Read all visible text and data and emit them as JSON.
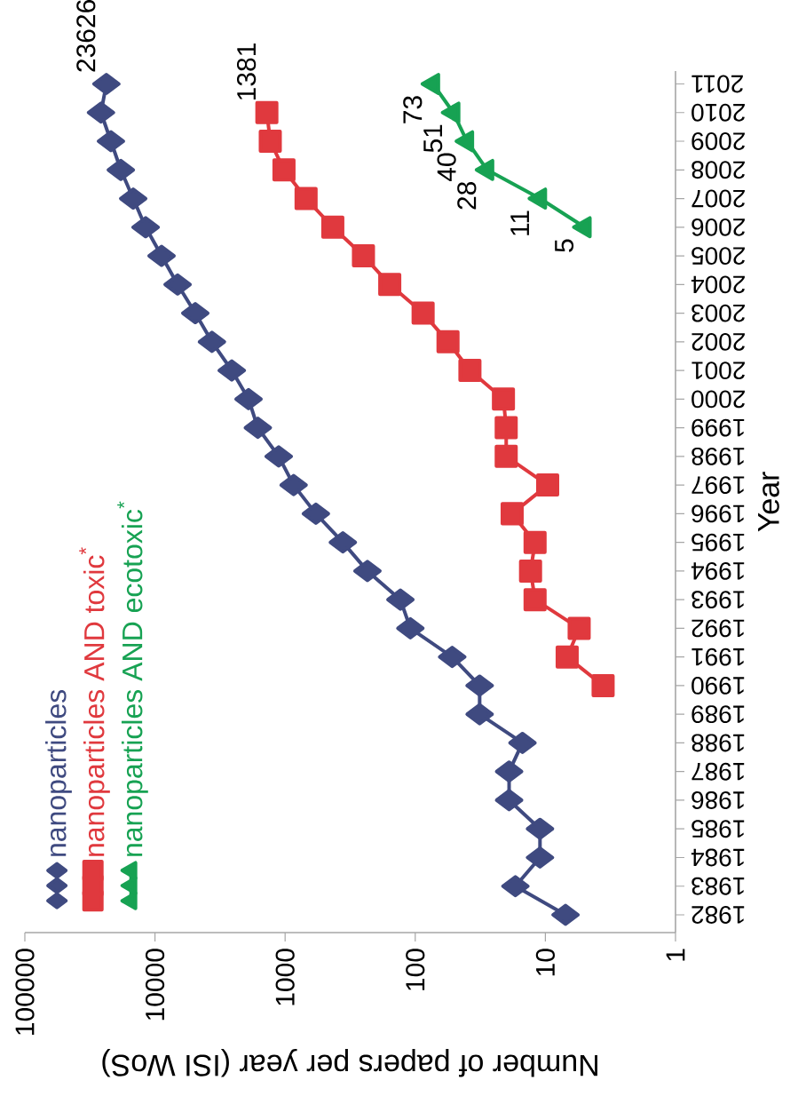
{
  "chart_data": {
    "type": "line",
    "orientation": "horizontal",
    "xlabel": "Number of papers per year (ISI WoS)",
    "ylabel": "Year",
    "categories": [
      "2011",
      "2010",
      "2009",
      "2008",
      "2007",
      "2006",
      "2005",
      "2004",
      "2003",
      "2002",
      "2001",
      "2000",
      "1999",
      "1998",
      "1997",
      "1996",
      "1995",
      "1994",
      "1993",
      "1992",
      "1991",
      "1990",
      "1989",
      "1988",
      "1987",
      "1986",
      "1985",
      "1984",
      "1983",
      "1982"
    ],
    "series": [
      {
        "name": "nanoparticles",
        "color": "#3f4a80",
        "marker": "diamond",
        "values": [
          23626,
          26000,
          21800,
          18300,
          14700,
          11800,
          8900,
          6700,
          4900,
          3650,
          2570,
          1910,
          1620,
          1120,
          860,
          580,
          360,
          233,
          130,
          109,
          52,
          32,
          32,
          15,
          19,
          19,
          11,
          11,
          17,
          7
        ],
        "value_labels": [
          "23626",
          null,
          null,
          null,
          null,
          null,
          null,
          null,
          null,
          null,
          null,
          null,
          null,
          null,
          null,
          null,
          null,
          null,
          null,
          null,
          null,
          null,
          null,
          null,
          null,
          null,
          null,
          null,
          null,
          null
        ]
      },
      {
        "name": "nanoparticles AND toxic$^{*}$",
        "color": "#e0393e",
        "marker": "square",
        "values": [
          null,
          1381,
          1300,
          1020,
          690,
          430,
          250,
          157,
          87,
          56,
          38,
          21,
          20,
          20,
          9.6,
          18,
          12,
          13,
          12,
          5.5,
          6.8,
          3.6,
          null,
          null,
          null,
          null,
          null,
          null,
          null,
          null
        ],
        "value_labels": [
          null,
          "1381",
          null,
          null,
          null,
          null,
          null,
          null,
          null,
          null,
          null,
          null,
          null,
          null,
          null,
          null,
          null,
          null,
          null,
          null,
          null,
          null,
          null,
          null,
          null,
          null,
          null,
          null,
          null,
          null
        ]
      },
      {
        "name": "nanoparticles AND ecotoxic$^{*}$",
        "color": "#17a253",
        "marker": "triangle",
        "values": [
          73,
          51,
          40,
          28,
          11,
          5,
          null,
          null,
          null,
          null,
          null,
          null,
          null,
          null,
          null,
          null,
          null,
          null,
          null,
          null,
          null,
          null,
          null,
          null,
          null,
          null,
          null,
          null,
          null,
          null
        ],
        "value_labels": [
          "73",
          "51",
          "40",
          "28",
          "11",
          "5",
          null,
          null,
          null,
          null,
          null,
          null,
          null,
          null,
          null,
          null,
          null,
          null,
          null,
          null,
          null,
          null,
          null,
          null,
          null,
          null,
          null,
          null,
          null,
          null
        ]
      }
    ],
    "xlim": [
      100000,
      1
    ],
    "xticks": [
      100000,
      10000,
      1000,
      100,
      10,
      1
    ],
    "log": "x",
    "legend": "bottom left"
  }
}
